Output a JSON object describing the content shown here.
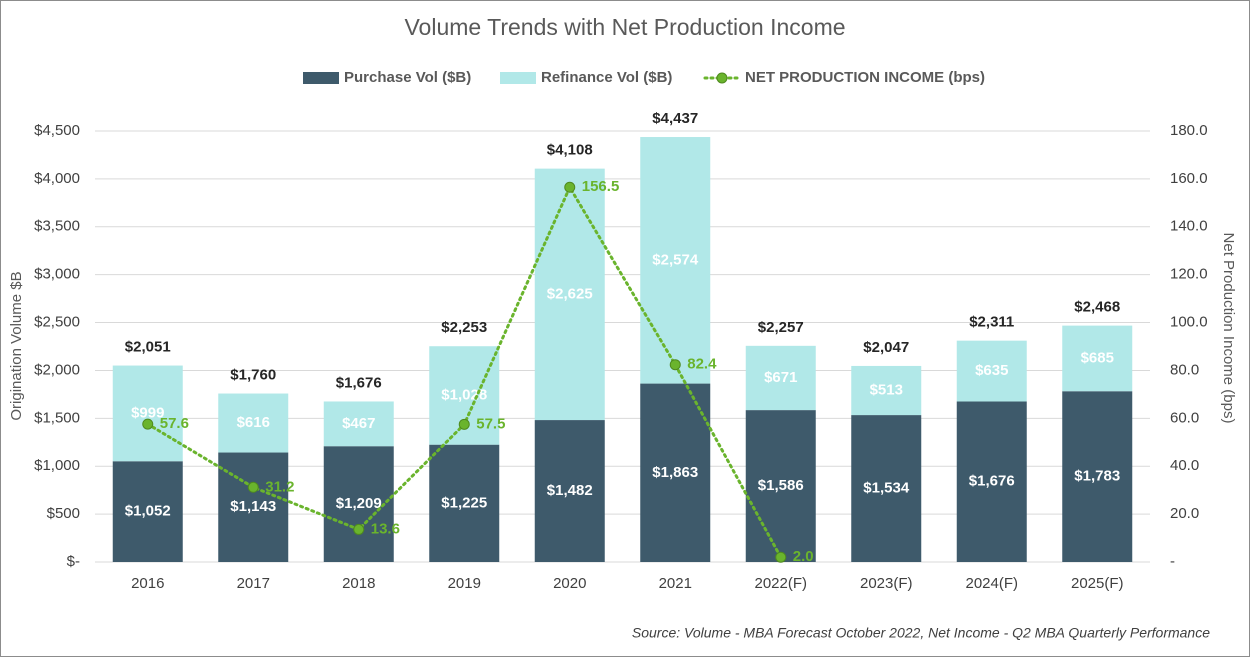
{
  "chart_data": {
    "type": "bar",
    "title": "Volume Trends with Net Production Income",
    "y_label": "Origination Volume $B",
    "y2_label": "Net Production Income (bps)",
    "source": "Source: Volume - MBA Forecast October 2022, Net Income - Q2 MBA Quarterly Performance",
    "categories": [
      "2016",
      "2017",
      "2018",
      "2019",
      "2020",
      "2021",
      "2022(F)",
      "2023(F)",
      "2024(F)",
      "2025(F)"
    ],
    "stacked": true,
    "series": [
      {
        "name": "Purchase Vol ($B)",
        "type": "bar",
        "color": "#3e5a6b",
        "values": [
          1052,
          1143,
          1209,
          1225,
          1482,
          1863,
          1586,
          1534,
          1676,
          1783
        ],
        "value_labels": [
          "$1,052",
          "$1,143",
          "$1,209",
          "$1,225",
          "$1,482",
          "$1,863",
          "$1,586",
          "$1,534",
          "$1,676",
          "$1,783"
        ]
      },
      {
        "name": "Refinance Vol ($B)",
        "type": "bar",
        "color": "#b1e8e8",
        "values": [
          999,
          616,
          467,
          1028,
          2625,
          2574,
          671,
          513,
          635,
          685
        ],
        "value_labels": [
          "$999",
          "$616",
          "$467",
          "$1,028",
          "$2,625",
          "$2,574",
          "$671",
          "$513",
          "$635",
          "$685"
        ]
      },
      {
        "name": "NET PRODUCTION INCOME (bps)",
        "type": "line",
        "axis": "y2",
        "color": "#6ab42d",
        "values": [
          57.6,
          31.2,
          13.6,
          57.5,
          156.5,
          82.4,
          2.0,
          null,
          null,
          null
        ],
        "value_labels": [
          "57.6",
          "31.2",
          "13.6",
          "57.5",
          "156.5",
          "82.4",
          "2.0",
          null,
          null,
          null
        ]
      }
    ],
    "total_labels": [
      "$2,051",
      "$1,760",
      "$1,676",
      "$2,253",
      "$4,108",
      "$4,437",
      "$2,257",
      "$2,047",
      "$2,311",
      "$2,468"
    ],
    "ylim": [
      0,
      4500
    ],
    "yticks": [
      {
        "value": 0,
        "label": "$-"
      },
      {
        "value": 500,
        "label": "$500"
      },
      {
        "value": 1000,
        "label": "$1,000"
      },
      {
        "value": 1500,
        "label": "$1,500"
      },
      {
        "value": 2000,
        "label": "$2,000"
      },
      {
        "value": 2500,
        "label": "$2,500"
      },
      {
        "value": 3000,
        "label": "$3,000"
      },
      {
        "value": 3500,
        "label": "$3,500"
      },
      {
        "value": 4000,
        "label": "$4,000"
      },
      {
        "value": 4500,
        "label": "$4,500"
      }
    ],
    "y2lim": [
      0,
      180
    ],
    "y2ticks": [
      {
        "value": 0,
        "label": "-"
      },
      {
        "value": 20,
        "label": "20.0"
      },
      {
        "value": 40,
        "label": "40.0"
      },
      {
        "value": 60,
        "label": "60.0"
      },
      {
        "value": 80,
        "label": "80.0"
      },
      {
        "value": 100,
        "label": "100.0"
      },
      {
        "value": 120,
        "label": "120.0"
      },
      {
        "value": 140,
        "label": "140.0"
      },
      {
        "value": 160,
        "label": "160.0"
      },
      {
        "value": 180,
        "label": "180.0"
      }
    ],
    "grid": true,
    "legend": "top"
  }
}
